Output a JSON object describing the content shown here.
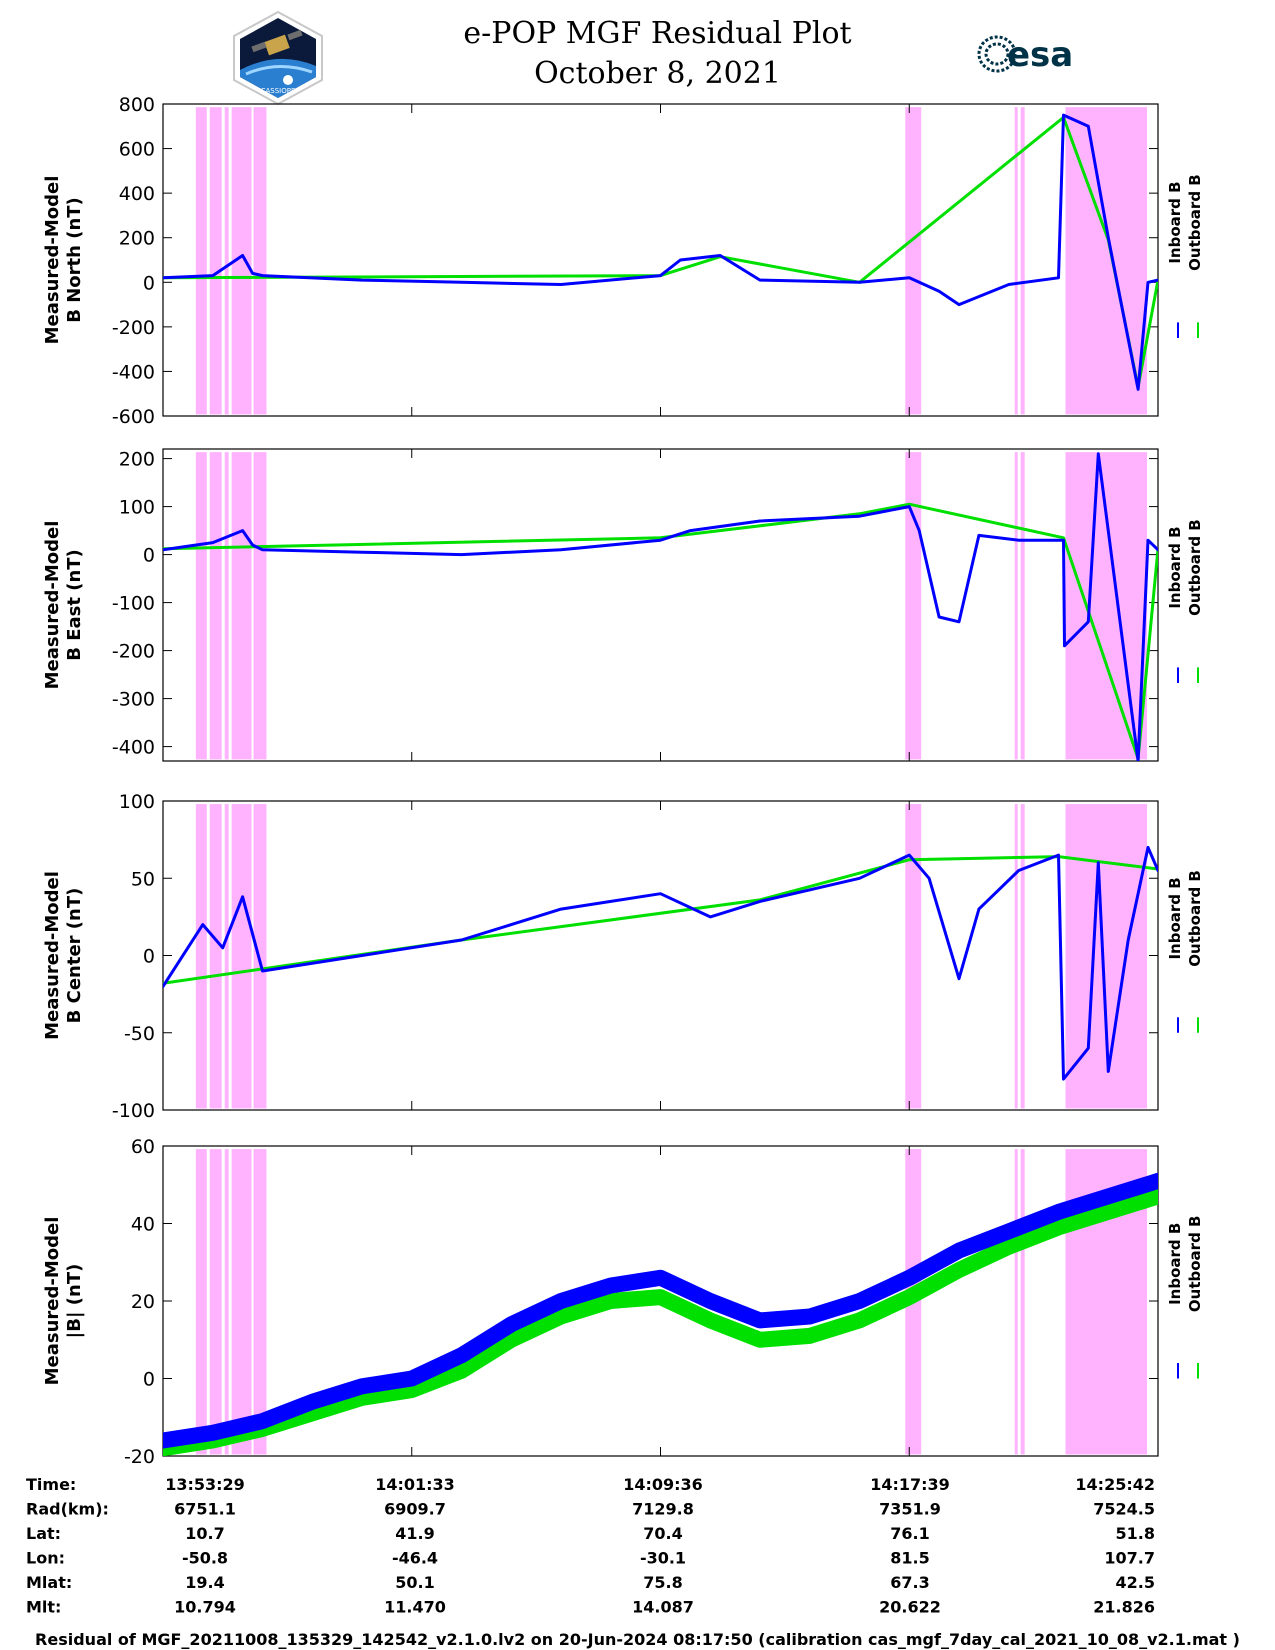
{
  "title": "e-POP MGF Residual Plot",
  "subtitle": "October 8, 2021",
  "logos": {
    "left": "cassiope-mission-logo",
    "right": "esa-logo",
    "esa_text": "esa",
    "cassiope_text": "CASSIOPE"
  },
  "colors": {
    "inboard": "#0000ff",
    "outboard": "#00e000",
    "shading": "#ffb3ff",
    "frame": "#000000"
  },
  "x_ticks": [
    "13:53:29",
    "14:01:33",
    "14:09:36",
    "14:17:39",
    "14:25:42"
  ],
  "shaded_intervals_fraction": [
    [
      0.033,
      0.044
    ],
    [
      0.047,
      0.059
    ],
    [
      0.062,
      0.066
    ],
    [
      0.069,
      0.089
    ],
    [
      0.091,
      0.104
    ],
    [
      0.746,
      0.762
    ],
    [
      0.856,
      0.859
    ],
    [
      0.862,
      0.866
    ],
    [
      0.907,
      0.989
    ]
  ],
  "chart_data": [
    {
      "type": "line",
      "ylabel": [
        "Measured-Model",
        "B North (nT)"
      ],
      "ylim": [
        -600,
        800
      ],
      "yticks": [
        800,
        600,
        400,
        200,
        0,
        -200,
        -400,
        -600
      ],
      "legend": [
        "Inboard B",
        "Outboard B"
      ],
      "legend_position": "right",
      "series": [
        {
          "name": "Inboard B",
          "color": "#0000ff",
          "x": [
            0,
            0.05,
            0.08,
            0.09,
            0.1,
            0.2,
            0.3,
            0.4,
            0.5,
            0.52,
            0.56,
            0.6,
            0.7,
            0.75,
            0.78,
            0.8,
            0.85,
            0.9,
            0.905,
            0.93,
            0.95,
            0.98,
            0.99,
            1.0
          ],
          "y": [
            20,
            30,
            120,
            40,
            30,
            10,
            0,
            -10,
            30,
            100,
            120,
            10,
            0,
            20,
            -40,
            -100,
            -10,
            20,
            750,
            700,
            200,
            -480,
            0,
            10
          ]
        },
        {
          "name": "Outboard B",
          "color": "#00e000",
          "x": [
            0,
            0.5,
            0.56,
            0.7,
            0.905,
            0.95,
            0.98,
            1.0
          ],
          "y": [
            20,
            30,
            115,
            0,
            740,
            190,
            -470,
            10
          ]
        }
      ]
    },
    {
      "type": "line",
      "ylabel": [
        "Measured-Model",
        "B East (nT)"
      ],
      "ylim": [
        -430,
        220
      ],
      "yticks": [
        200,
        100,
        0,
        -100,
        -200,
        -300,
        -400
      ],
      "legend": [
        "Inboard B",
        "Outboard B"
      ],
      "legend_position": "right",
      "series": [
        {
          "name": "Inboard B",
          "color": "#0000ff",
          "x": [
            0,
            0.05,
            0.08,
            0.09,
            0.1,
            0.2,
            0.3,
            0.4,
            0.5,
            0.53,
            0.6,
            0.7,
            0.75,
            0.76,
            0.78,
            0.8,
            0.82,
            0.86,
            0.905,
            0.906,
            0.93,
            0.94,
            0.98,
            0.99,
            1.0
          ],
          "y": [
            10,
            25,
            50,
            20,
            10,
            5,
            0,
            10,
            30,
            50,
            70,
            80,
            100,
            50,
            -130,
            -140,
            40,
            30,
            30,
            -190,
            -140,
            210,
            -430,
            30,
            10
          ]
        },
        {
          "name": "Outboard B",
          "color": "#00e000",
          "x": [
            0,
            0.5,
            0.7,
            0.75,
            0.905,
            0.98,
            1.0
          ],
          "y": [
            12,
            35,
            85,
            105,
            35,
            -425,
            12
          ]
        }
      ]
    },
    {
      "type": "line",
      "ylabel": [
        "Measured-Model",
        "B Center (nT)"
      ],
      "ylim": [
        -100,
        100
      ],
      "yticks": [
        100,
        50,
        0,
        -50,
        -100
      ],
      "legend": [
        "Inboard B",
        "Outboard B"
      ],
      "legend_position": "right",
      "series": [
        {
          "name": "Inboard B",
          "color": "#0000ff",
          "x": [
            0,
            0.04,
            0.06,
            0.08,
            0.1,
            0.2,
            0.3,
            0.35,
            0.4,
            0.45,
            0.5,
            0.55,
            0.6,
            0.7,
            0.75,
            0.77,
            0.8,
            0.82,
            0.86,
            0.9,
            0.905,
            0.93,
            0.94,
            0.95,
            0.97,
            0.99,
            1.0
          ],
          "y": [
            -20,
            20,
            5,
            38,
            -10,
            0,
            10,
            20,
            30,
            35,
            40,
            25,
            35,
            50,
            65,
            50,
            -15,
            30,
            55,
            65,
            -80,
            -60,
            60,
            -75,
            10,
            70,
            55
          ]
        },
        {
          "name": "Outboard B",
          "color": "#00e000",
          "x": [
            0,
            0.3,
            0.6,
            0.75,
            0.9,
            1.0
          ],
          "y": [
            -18,
            10,
            36,
            62,
            64,
            56
          ]
        }
      ]
    },
    {
      "type": "line",
      "ylabel": [
        "Measured-Model",
        "|B| (nT)"
      ],
      "ylim": [
        -20,
        60
      ],
      "yticks": [
        60,
        40,
        20,
        0,
        -20
      ],
      "legend": [
        "Inboard B",
        "Outboard B"
      ],
      "legend_position": "right",
      "series": [
        {
          "name": "Inboard B",
          "color": "#0000ff",
          "x": [
            0,
            0.05,
            0.1,
            0.15,
            0.2,
            0.25,
            0.3,
            0.35,
            0.4,
            0.45,
            0.5,
            0.55,
            0.6,
            0.65,
            0.7,
            0.75,
            0.8,
            0.85,
            0.9,
            0.95,
            1.0
          ],
          "y": [
            -16,
            -14,
            -11,
            -6,
            -2,
            0,
            6,
            14,
            20,
            24,
            26,
            20,
            15,
            16,
            20,
            26,
            33,
            38,
            43,
            47,
            51
          ]
        },
        {
          "name": "Outboard B",
          "color": "#00e000",
          "x": [
            0,
            0.05,
            0.1,
            0.15,
            0.2,
            0.25,
            0.3,
            0.35,
            0.4,
            0.45,
            0.5,
            0.55,
            0.6,
            0.65,
            0.7,
            0.75,
            0.8,
            0.85,
            0.9,
            0.95,
            1.0
          ],
          "y": [
            -18,
            -16,
            -13,
            -9,
            -5,
            -3,
            2,
            10,
            16,
            20,
            21,
            15,
            10,
            11,
            15,
            21,
            28,
            34,
            39,
            43,
            47
          ]
        }
      ]
    }
  ],
  "orbit_table": {
    "rows": [
      {
        "label": "Time:",
        "values": [
          "13:53:29",
          "14:01:33",
          "14:09:36",
          "14:17:39",
          "14:25:42"
        ]
      },
      {
        "label": "Rad(km):",
        "values": [
          "6751.1",
          "6909.7",
          "7129.8",
          "7351.9",
          "7524.5"
        ]
      },
      {
        "label": "Lat:",
        "values": [
          "10.7",
          "41.9",
          "70.4",
          "76.1",
          "51.8"
        ]
      },
      {
        "label": "Lon:",
        "values": [
          "-50.8",
          "-46.4",
          "-30.1",
          "81.5",
          "107.7"
        ]
      },
      {
        "label": "Mlat:",
        "values": [
          "19.4",
          "50.1",
          "75.8",
          "67.3",
          "42.5"
        ]
      },
      {
        "label": "Mlt:",
        "values": [
          "10.794",
          "11.470",
          "14.087",
          "20.622",
          "21.826"
        ]
      }
    ]
  },
  "footer": "Residual of MGF_20211008_135329_142542_v2.1.0.lv2 on 20-Jun-2024 08:17:50 (calibration cas_mgf_7day_cal_2021_10_08_v2.1.mat )"
}
